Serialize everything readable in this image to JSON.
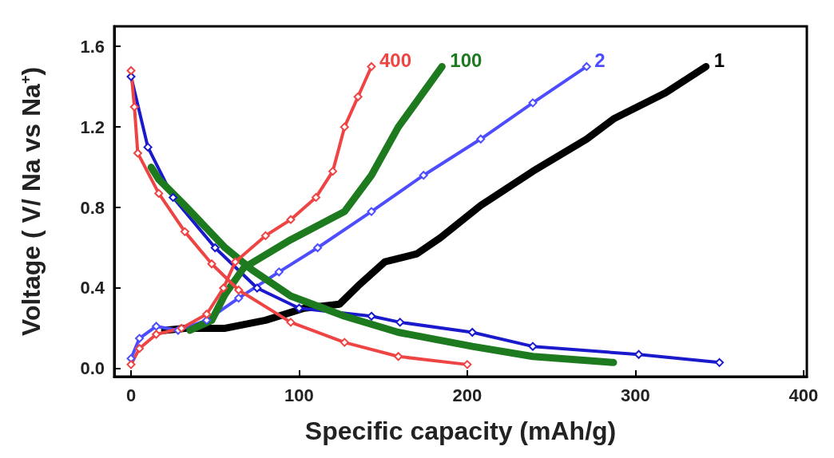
{
  "chart_data": {
    "type": "line",
    "xlabel": "Specific capacity (mAh/g)",
    "ylabel": "Voltage ( V/ Na vs Na$^{+}$)",
    "xlim": [
      -10,
      402
    ],
    "xticks": [
      0,
      100,
      200,
      300,
      400
    ],
    "ylim": [
      -0.04,
      1.7
    ],
    "yticks": [
      {
        "value": 0,
        "label": "0.0"
      },
      0.4,
      0.8,
      1.2,
      1.6
    ],
    "grid": false,
    "legend": false,
    "series": [
      {
        "name": "1",
        "color": "#000000",
        "marker": "none",
        "x": [
          20,
          32,
          56,
          80,
          103,
          124,
          135,
          151,
          170,
          184,
          208,
          239,
          271,
          287,
          318,
          342
        ],
        "values": [
          0.19,
          0.2,
          0.2,
          0.24,
          0.3,
          0.32,
          0.41,
          0.53,
          0.57,
          0.65,
          0.81,
          0.98,
          1.14,
          1.24,
          1.37,
          1.5
        ]
      },
      {
        "name": "2",
        "color": "#4d4dff",
        "marker": "diamond",
        "x": [
          0,
          5,
          15,
          28,
          45,
          64,
          88,
          111,
          143,
          174,
          208,
          239,
          271
        ],
        "values": [
          0.05,
          0.15,
          0.21,
          0.19,
          0.24,
          0.35,
          0.48,
          0.6,
          0.78,
          0.96,
          1.14,
          1.32,
          1.5
        ]
      },
      {
        "color": "#1a1acc",
        "marker": "diamond",
        "x": [
          0,
          10,
          25,
          50,
          75,
          100,
          143,
          160,
          203,
          239,
          302,
          350
        ],
        "values": [
          1.45,
          1.1,
          0.85,
          0.6,
          0.4,
          0.3,
          0.26,
          0.23,
          0.18,
          0.11,
          0.07,
          0.03
        ]
      },
      {
        "name": "100",
        "color": "#1e7a1e",
        "marker": "none",
        "x": [
          35,
          48,
          56,
          67,
          95,
          127,
          143,
          159,
          185
        ],
        "values": [
          0.19,
          0.24,
          0.37,
          0.5,
          0.64,
          0.78,
          0.96,
          1.2,
          1.5
        ]
      },
      {
        "color": "#1e7a1e",
        "marker": "none",
        "x": [
          12,
          16.5,
          32,
          56,
          72,
          95,
          127,
          159,
          203,
          239,
          287
        ],
        "values": [
          1.0,
          0.94,
          0.81,
          0.6,
          0.49,
          0.36,
          0.26,
          0.18,
          0.11,
          0.06,
          0.03
        ]
      },
      {
        "name": "400",
        "color": "#ee4444",
        "marker": "diamond",
        "x": [
          0,
          5,
          15,
          30,
          45,
          55,
          62,
          80,
          95,
          110,
          120,
          127,
          135,
          143
        ],
        "values": [
          0.02,
          0.1,
          0.17,
          0.2,
          0.27,
          0.4,
          0.53,
          0.66,
          0.74,
          0.85,
          0.98,
          1.2,
          1.35,
          1.5
        ]
      },
      {
        "color": "#ee4444",
        "marker": "diamond",
        "x": [
          0,
          2,
          4,
          16.5,
          32,
          48,
          64,
          95,
          127,
          159,
          200
        ],
        "values": [
          1.48,
          1.3,
          1.07,
          0.87,
          0.68,
          0.52,
          0.39,
          0.23,
          0.13,
          0.06,
          0.02
        ]
      }
    ]
  }
}
